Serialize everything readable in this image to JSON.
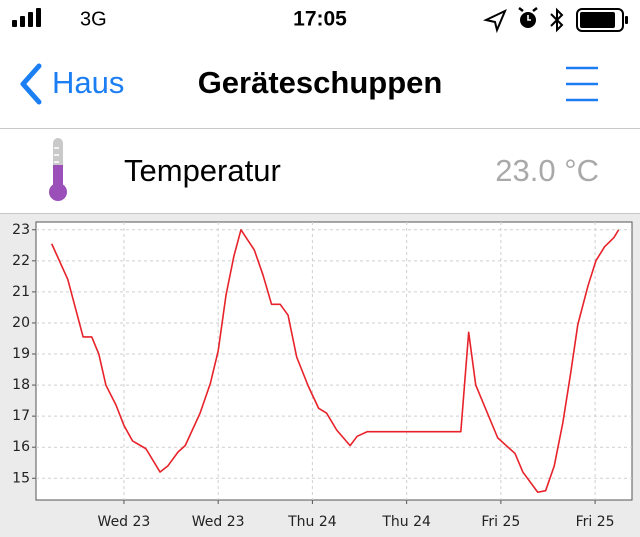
{
  "status_bar": {
    "carrier": "3G",
    "time": "17:05"
  },
  "nav": {
    "back": "Haus",
    "title": "Geräteschuppen"
  },
  "sensor": {
    "name": "Temperatur",
    "value": "23.0 °C"
  },
  "chart_data": {
    "type": "line",
    "color": "#e8222a",
    "grid": true,
    "x": [
      2.8,
      4.85,
      6.8,
      7.9,
      8.8,
      9.7,
      11.0,
      12.0,
      13.1,
      14.8,
      16.6,
      17.6,
      18.9,
      19.8,
      21.7,
      23.0,
      24.0,
      25.0,
      26.0,
      26.9,
      28.6,
      29.7,
      30.8,
      31.9,
      32.9,
      34.0,
      35.5,
      36.8,
      37.8,
      39.1,
      40.8,
      41.7,
      43.0,
      54.9,
      55.9,
      56.8,
      59.6,
      61.8,
      62.8,
      64.7,
      65.7,
      66.8,
      67.9,
      68.9,
      69.8,
      71.1,
      72.1,
      73.2,
      74.4,
      75.0
    ],
    "values": [
      22.55,
      21.4,
      19.55,
      19.55,
      19.0,
      18.0,
      17.35,
      16.7,
      16.2,
      15.95,
      15.2,
      15.4,
      15.85,
      16.05,
      17.1,
      18.05,
      19.1,
      20.9,
      22.15,
      23.0,
      22.35,
      21.55,
      20.6,
      20.6,
      20.25,
      18.9,
      17.95,
      17.25,
      17.1,
      16.55,
      16.05,
      16.35,
      16.5,
      16.5,
      19.7,
      18.0,
      16.3,
      15.8,
      15.2,
      14.55,
      14.6,
      15.4,
      16.8,
      18.4,
      19.95,
      21.2,
      22.0,
      22.45,
      22.75,
      23.0
    ],
    "xlim": [
      0.8,
      76.7
    ],
    "xticks": [
      {
        "value": 12,
        "label": "Wed 23"
      },
      {
        "value": 24,
        "label": "Wed 23"
      },
      {
        "value": 36,
        "label": "Thu 24"
      },
      {
        "value": 48,
        "label": "Thu 24"
      },
      {
        "value": 60,
        "label": "Fri 25"
      },
      {
        "value": 72,
        "label": "Fri 25"
      }
    ],
    "ylim": [
      14.3,
      23.25
    ],
    "yticks": [
      15,
      16,
      17,
      18,
      19,
      20,
      21,
      22,
      23
    ]
  }
}
